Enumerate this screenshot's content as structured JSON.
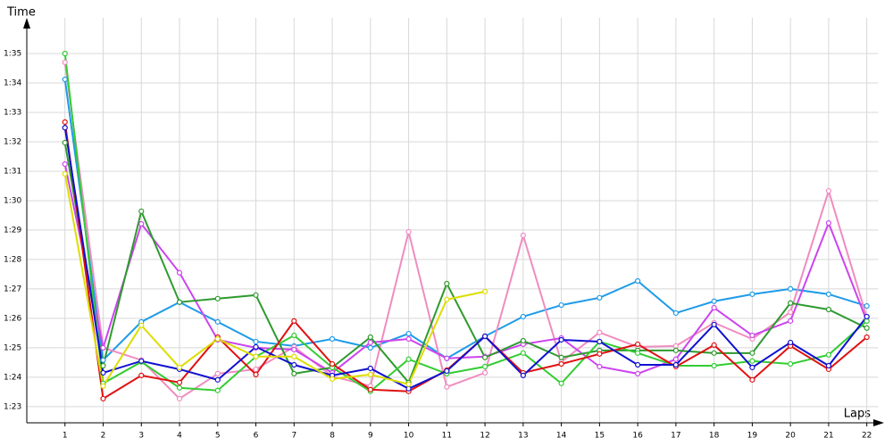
{
  "chart_data": {
    "type": "line",
    "ylabel": "Time",
    "xlabel": "Laps",
    "grid": true,
    "xlim": [
      0,
      22.3
    ],
    "ylim": [
      82.45,
      95.97
    ],
    "x": [
      1,
      2,
      3,
      4,
      5,
      6,
      7,
      8,
      9,
      10,
      11,
      12,
      13,
      14,
      15,
      16,
      17,
      18,
      19,
      20,
      21,
      22
    ],
    "xticks": [
      1,
      2,
      3,
      4,
      5,
      6,
      7,
      8,
      9,
      10,
      11,
      12,
      13,
      14,
      15,
      16,
      17,
      18,
      19,
      20,
      21,
      22
    ],
    "yticks": [
      {
        "value": 83,
        "label": "1:23"
      },
      {
        "value": 84,
        "label": "1:24"
      },
      {
        "value": 85,
        "label": "1:25"
      },
      {
        "value": 86,
        "label": "1:26"
      },
      {
        "value": 87,
        "label": "1:27"
      },
      {
        "value": 88,
        "label": "1:28"
      },
      {
        "value": 89,
        "label": "1:29"
      },
      {
        "value": 90,
        "label": "1:30"
      },
      {
        "value": 91,
        "label": "1:31"
      },
      {
        "value": 92,
        "label": "1:32"
      },
      {
        "value": 93,
        "label": "1:33"
      },
      {
        "value": 94,
        "label": "1:34"
      },
      {
        "value": 95,
        "label": "1:35"
      }
    ],
    "series": [
      {
        "color": "#1e9be8",
        "values": [
          94.12,
          84.58,
          85.88,
          86.55,
          85.88,
          85.21,
          85.06,
          85.3,
          85.0,
          85.48,
          84.64,
          85.39,
          86.06,
          86.45,
          86.7,
          87.27,
          86.18,
          86.58,
          86.82,
          87.0,
          86.82,
          86.42
        ]
      },
      {
        "color": "#f08cc0",
        "values": [
          94.7,
          85.0,
          84.58,
          83.27,
          84.12,
          84.27,
          85.03,
          84.03,
          83.7,
          88.94,
          83.67,
          84.15,
          88.82,
          84.52,
          85.52,
          85.03,
          85.06,
          85.85,
          85.3,
          86.21,
          90.33,
          86.03
        ]
      },
      {
        "color": "#cc44ee",
        "values": [
          91.24,
          85.0,
          89.21,
          87.55,
          85.27,
          85.0,
          84.94,
          84.15,
          85.18,
          85.3,
          84.64,
          84.7,
          85.12,
          85.33,
          84.36,
          84.12,
          84.61,
          86.36,
          85.42,
          85.91,
          89.24,
          85.91
        ]
      },
      {
        "color": "#2e9a2e",
        "values": [
          91.97,
          84.39,
          89.64,
          86.55,
          86.67,
          86.79,
          84.12,
          84.33,
          85.36,
          83.82,
          87.18,
          84.67,
          85.24,
          84.67,
          84.91,
          84.91,
          84.91,
          84.82,
          84.82,
          86.52,
          86.3,
          85.67
        ]
      },
      {
        "color": "#33cc33",
        "values": [
          95.0,
          83.79,
          84.52,
          83.64,
          83.55,
          84.7,
          85.42,
          84.33,
          83.52,
          84.61,
          84.12,
          84.36,
          84.82,
          83.79,
          85.21,
          84.82,
          84.39,
          84.39,
          84.55,
          84.45,
          84.76,
          85.91
        ]
      },
      {
        "color": "#e01010",
        "values": [
          92.67,
          83.27,
          84.06,
          83.82,
          85.36,
          84.09,
          85.91,
          84.45,
          83.58,
          83.52,
          84.24,
          85.39,
          84.15,
          84.45,
          84.79,
          85.12,
          84.36,
          85.09,
          83.91,
          85.06,
          84.27,
          85.36
        ]
      },
      {
        "color": "#1010d0",
        "values": [
          92.48,
          84.15,
          84.55,
          84.27,
          83.91,
          85.03,
          84.42,
          84.06,
          84.3,
          83.61,
          84.21,
          85.39,
          84.06,
          85.27,
          85.21,
          84.42,
          84.42,
          85.79,
          84.33,
          85.18,
          84.39,
          86.06
        ]
      },
      {
        "color": "#dddd00",
        "values": [
          90.91,
          83.7,
          85.76,
          84.33,
          85.3,
          84.7,
          84.7,
          83.94,
          84.09,
          83.76,
          86.64,
          86.91,
          null,
          null,
          null,
          null,
          null,
          null,
          null,
          null,
          null,
          null
        ]
      }
    ]
  }
}
